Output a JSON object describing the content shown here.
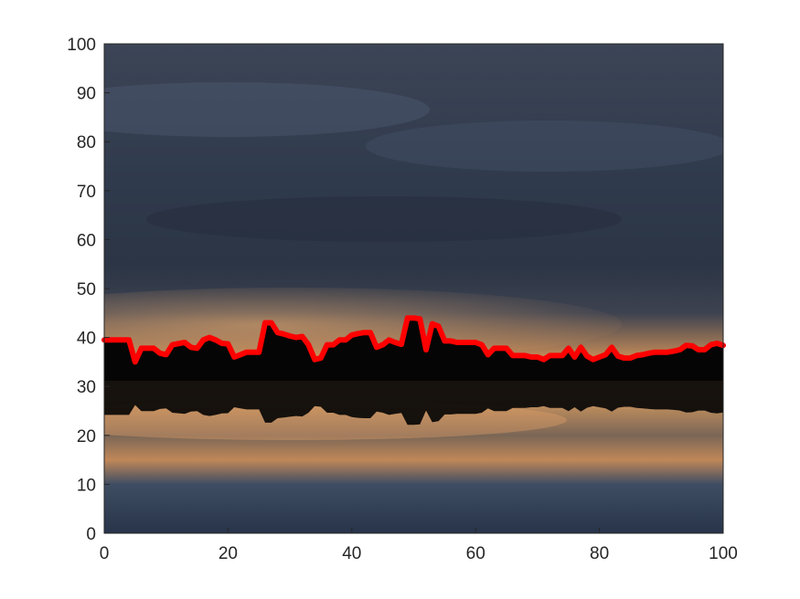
{
  "chart_data": {
    "type": "line",
    "title": "",
    "xlabel": "",
    "ylabel": "",
    "xlim": [
      0,
      100
    ],
    "ylim": [
      0,
      100
    ],
    "grid": false,
    "x_ticks": [
      "0",
      "20",
      "40",
      "60",
      "80",
      "100"
    ],
    "y_ticks": [
      "0",
      "10",
      "20",
      "30",
      "40",
      "50",
      "60",
      "70",
      "80",
      "90",
      "100"
    ],
    "background": "photograph of a city skyline at sunset under a cloudy sky, reflected in water",
    "series": [
      {
        "color": "#ff0000",
        "x": [
          0,
          4,
          5,
          6,
          8,
          9,
          10,
          11,
          13,
          14,
          15,
          16,
          17,
          18,
          19,
          20,
          21,
          22,
          23,
          24,
          25,
          26,
          27,
          28,
          29,
          30,
          31,
          32,
          33,
          34,
          35,
          36,
          37,
          38,
          39,
          40,
          41,
          42,
          43,
          44,
          45,
          46,
          47,
          48,
          49,
          50,
          51,
          52,
          53,
          54,
          55,
          56,
          57,
          58,
          59,
          60,
          61,
          62,
          63,
          64,
          65,
          66,
          67,
          68,
          69,
          70,
          71,
          72,
          73,
          74,
          75,
          76,
          77,
          78,
          79,
          80,
          81,
          82,
          83,
          84,
          85,
          86,
          87,
          88,
          89,
          90,
          91,
          92,
          93,
          94,
          95,
          96,
          97,
          98,
          99,
          100
        ],
        "y": [
          39.5,
          39.5,
          35,
          37.8,
          37.8,
          36.8,
          36.5,
          38.5,
          39,
          38,
          37.8,
          39.5,
          40,
          39.5,
          38.8,
          38.7,
          36,
          36.5,
          37,
          37,
          37,
          43,
          43,
          41,
          40.7,
          40.3,
          40,
          40.2,
          38.5,
          35.5,
          35.8,
          38.5,
          38.5,
          39.5,
          39.5,
          40.5,
          40.8,
          41,
          41,
          38,
          38.5,
          39.5,
          39,
          38.6,
          44,
          44,
          43.8,
          37.5,
          42.8,
          42.3,
          39.3,
          39.3,
          39,
          39,
          39,
          39,
          38.5,
          36.5,
          37.8,
          37.8,
          37.8,
          36.3,
          36.3,
          36.3,
          36,
          36,
          35.5,
          36.3,
          36.3,
          36.3,
          37.8,
          36,
          38,
          36.2,
          35.5,
          36,
          36.5,
          38,
          36.2,
          35.8,
          35.8,
          36.3,
          36.5,
          36.8,
          37,
          37,
          37,
          37.2,
          37.5,
          38.4,
          38.3,
          37.5,
          37.5,
          38.5,
          38.8,
          38.4
        ]
      }
    ]
  }
}
